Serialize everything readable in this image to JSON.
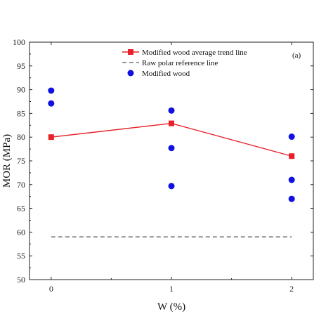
{
  "chart_data": {
    "type": "line",
    "xlabel": "W (%)",
    "ylabel": "MOR (MPa)",
    "panel_label": "(a)",
    "xlim": [
      -0.18,
      2.18
    ],
    "ylim": [
      50,
      100
    ],
    "x_ticks": [
      0,
      1,
      2
    ],
    "y_ticks": [
      50,
      55,
      60,
      65,
      70,
      75,
      80,
      85,
      90,
      95,
      100
    ],
    "grid": false,
    "legend_position": "top-center",
    "series": [
      {
        "name": "Modified wood average trend line",
        "kind": "line-square-markers",
        "color": "#e8202a",
        "x": [
          0,
          1,
          2
        ],
        "y": [
          80.0,
          82.9,
          76.0
        ]
      },
      {
        "name": "Raw polar reference line",
        "kind": "dashed-line",
        "color": "#555555",
        "x": [
          0,
          2
        ],
        "y": [
          59.0,
          59.0
        ]
      },
      {
        "name": "Modified wood",
        "kind": "scatter",
        "color": "#1010e0",
        "x": [
          0,
          0,
          1,
          1,
          1,
          2,
          2,
          2
        ],
        "y": [
          89.8,
          87.1,
          85.6,
          77.7,
          69.7,
          80.1,
          71.0,
          67.0
        ]
      }
    ]
  }
}
